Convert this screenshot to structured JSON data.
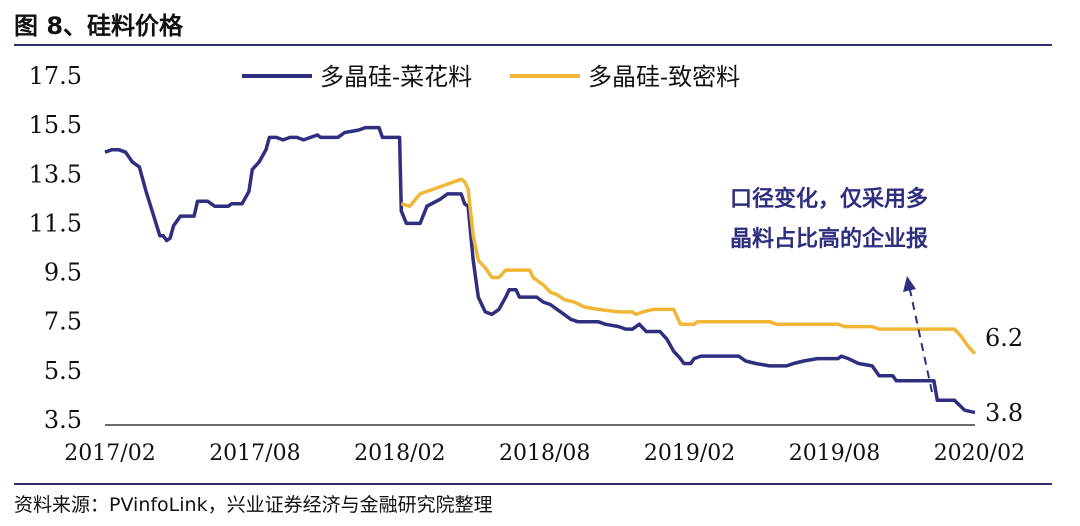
{
  "figure_title": "图 8、硅料价格",
  "source": "资料来源：PVinfoLink，兴业证券经济与金融研究院整理",
  "chart_data": {
    "type": "line",
    "y_ticks": [
      "17.5",
      "15.5",
      "13.5",
      "11.5",
      "9.5",
      "7.5",
      "5.5",
      "3.5"
    ],
    "ylim": [
      3.5,
      17.5
    ],
    "x_ticks": [
      "2017/02",
      "2017/08",
      "2018/02",
      "2018/08",
      "2019/02",
      "2019/08",
      "2020/02"
    ],
    "legend_position": "top-left",
    "annotation": {
      "lines": [
        "口径变化，仅采用多",
        "晶料占比高的企业报"
      ]
    },
    "end_labels": [
      "6.2",
      "3.8"
    ],
    "series": [
      {
        "name": "多晶硅-菜花料",
        "color": "#2e2f7e",
        "points": [
          [
            0,
            14.4
          ],
          [
            2,
            14.5
          ],
          [
            4,
            14.5
          ],
          [
            6,
            14.4
          ],
          [
            8,
            14.0
          ],
          [
            10,
            13.8
          ],
          [
            12,
            12.8
          ],
          [
            14,
            11.9
          ],
          [
            16,
            11.0
          ],
          [
            17,
            11.0
          ],
          [
            18,
            10.8
          ],
          [
            19,
            10.9
          ],
          [
            20,
            11.4
          ],
          [
            22,
            11.8
          ],
          [
            24,
            11.8
          ],
          [
            26,
            11.8
          ],
          [
            27,
            12.4
          ],
          [
            30,
            12.4
          ],
          [
            32,
            12.2
          ],
          [
            36,
            12.2
          ],
          [
            37,
            12.3
          ],
          [
            40,
            12.3
          ],
          [
            42,
            12.8
          ],
          [
            43,
            13.7
          ],
          [
            45,
            14.0
          ],
          [
            47,
            14.5
          ],
          [
            48,
            15.0
          ],
          [
            50,
            15.0
          ],
          [
            52,
            14.9
          ],
          [
            54,
            15.0
          ],
          [
            56,
            15.0
          ],
          [
            58,
            14.9
          ],
          [
            60,
            15.0
          ],
          [
            62,
            15.1
          ],
          [
            63,
            15.0
          ],
          [
            66,
            15.0
          ],
          [
            68,
            15.0
          ],
          [
            70,
            15.2
          ],
          [
            74,
            15.3
          ],
          [
            76,
            15.4
          ],
          [
            80,
            15.4
          ],
          [
            81,
            15.0
          ],
          [
            86,
            15.0
          ],
          [
            86.5,
            12.0
          ],
          [
            88,
            11.5
          ],
          [
            92,
            11.5
          ],
          [
            94,
            12.2
          ],
          [
            98,
            12.5
          ],
          [
            100,
            12.7
          ],
          [
            104,
            12.7
          ],
          [
            105,
            12.3
          ],
          [
            106,
            12.2
          ],
          [
            107.5,
            10.0
          ],
          [
            109,
            8.5
          ],
          [
            111,
            7.9
          ],
          [
            113,
            7.8
          ],
          [
            115,
            8.0
          ],
          [
            117,
            8.5
          ],
          [
            118,
            8.8
          ],
          [
            120,
            8.8
          ],
          [
            121,
            8.5
          ],
          [
            126,
            8.5
          ],
          [
            128,
            8.3
          ],
          [
            130,
            8.2
          ],
          [
            132,
            8.0
          ],
          [
            134,
            7.8
          ],
          [
            136,
            7.6
          ],
          [
            138,
            7.5
          ],
          [
            144,
            7.5
          ],
          [
            146,
            7.4
          ],
          [
            150,
            7.3
          ],
          [
            152,
            7.2
          ],
          [
            154,
            7.2
          ],
          [
            156,
            7.4
          ],
          [
            158,
            7.1
          ],
          [
            162,
            7.1
          ],
          [
            164,
            6.8
          ],
          [
            166,
            6.3
          ],
          [
            168,
            6.0
          ],
          [
            169,
            5.8
          ],
          [
            171,
            5.8
          ],
          [
            172,
            6.0
          ],
          [
            174,
            6.1
          ],
          [
            185,
            6.1
          ],
          [
            187,
            5.9
          ],
          [
            190,
            5.8
          ],
          [
            194,
            5.7
          ],
          [
            199,
            5.7
          ],
          [
            201,
            5.8
          ],
          [
            204,
            5.9
          ],
          [
            208,
            6.0
          ],
          [
            214,
            6.0
          ],
          [
            215,
            6.1
          ],
          [
            217,
            6.0
          ],
          [
            220,
            5.8
          ],
          [
            224,
            5.7
          ],
          [
            226,
            5.3
          ],
          [
            230,
            5.3
          ],
          [
            231,
            5.1
          ],
          [
            242,
            5.1
          ],
          [
            243,
            4.3
          ],
          [
            248,
            4.3
          ],
          [
            251,
            3.9
          ],
          [
            254,
            3.8
          ]
        ]
      },
      {
        "name": "多晶硅-致密料",
        "color": "#f2b636",
        "points": [
          [
            86.5,
            12.3
          ],
          [
            89,
            12.2
          ],
          [
            92,
            12.7
          ],
          [
            96,
            12.9
          ],
          [
            100,
            13.1
          ],
          [
            104,
            13.3
          ],
          [
            105,
            13.2
          ],
          [
            106,
            12.9
          ],
          [
            107.5,
            11.0
          ],
          [
            109,
            10.0
          ],
          [
            111,
            9.7
          ],
          [
            113,
            9.3
          ],
          [
            115,
            9.3
          ],
          [
            117,
            9.6
          ],
          [
            120,
            9.6
          ],
          [
            124,
            9.6
          ],
          [
            125,
            9.3
          ],
          [
            128,
            9.0
          ],
          [
            130,
            8.7
          ],
          [
            132,
            8.6
          ],
          [
            134,
            8.4
          ],
          [
            137,
            8.3
          ],
          [
            140,
            8.1
          ],
          [
            144,
            8.0
          ],
          [
            150,
            7.9
          ],
          [
            154,
            7.9
          ],
          [
            155,
            7.8
          ],
          [
            157,
            7.9
          ],
          [
            160,
            8.0
          ],
          [
            166,
            8.0
          ],
          [
            168,
            7.4
          ],
          [
            172,
            7.4
          ],
          [
            173,
            7.5
          ],
          [
            180,
            7.5
          ],
          [
            192,
            7.5
          ],
          [
            194,
            7.5
          ],
          [
            196,
            7.4
          ],
          [
            200,
            7.4
          ],
          [
            214,
            7.4
          ],
          [
            216,
            7.3
          ],
          [
            224,
            7.3
          ],
          [
            226,
            7.2
          ],
          [
            244,
            7.2
          ],
          [
            248,
            7.2
          ],
          [
            250,
            6.9
          ],
          [
            252,
            6.5
          ],
          [
            254,
            6.2
          ]
        ]
      }
    ]
  }
}
